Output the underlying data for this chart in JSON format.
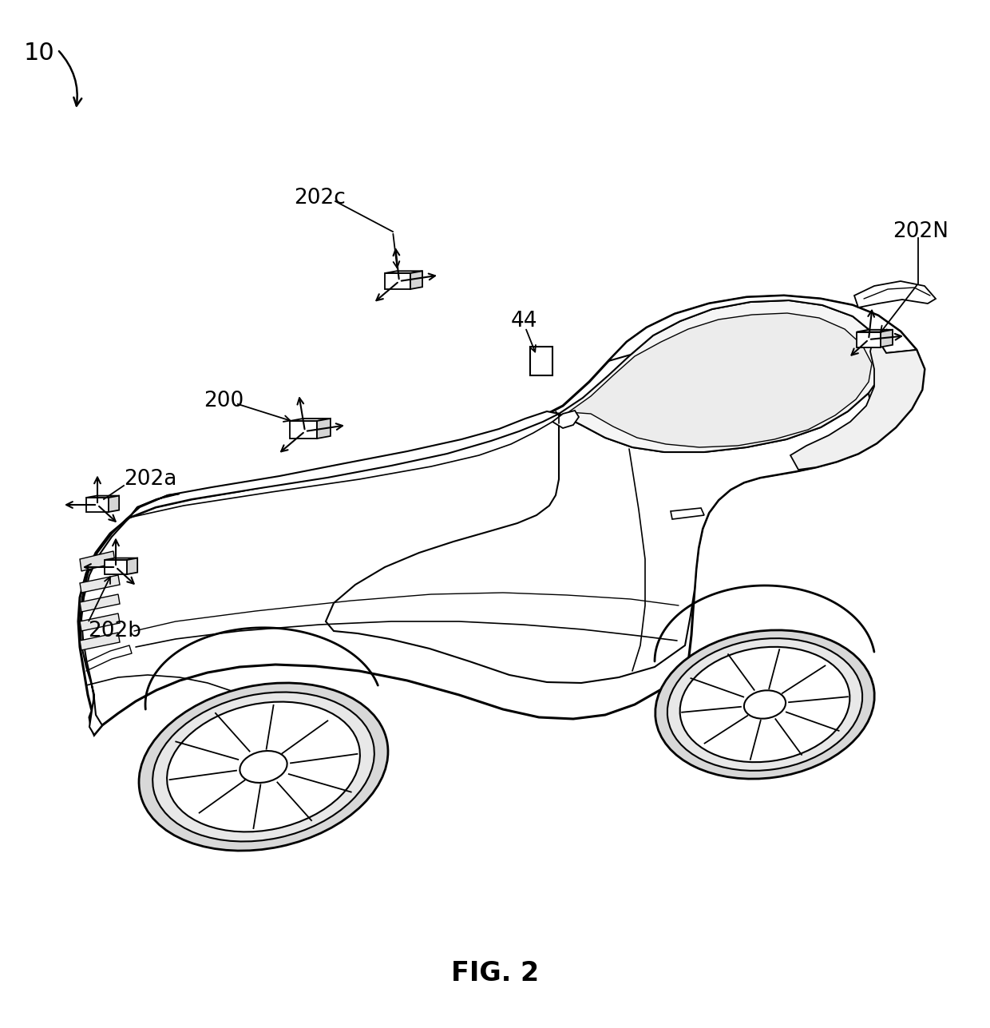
{
  "fig_caption": "FIG. 2",
  "fig_number": "10",
  "labels": [
    "10",
    "200",
    "202a",
    "202b",
    "202c",
    "202N",
    "44"
  ],
  "background_color": "#ffffff",
  "line_color": "#000000",
  "fig_width": 12.4,
  "fig_height": 12.87,
  "dpi": 100
}
